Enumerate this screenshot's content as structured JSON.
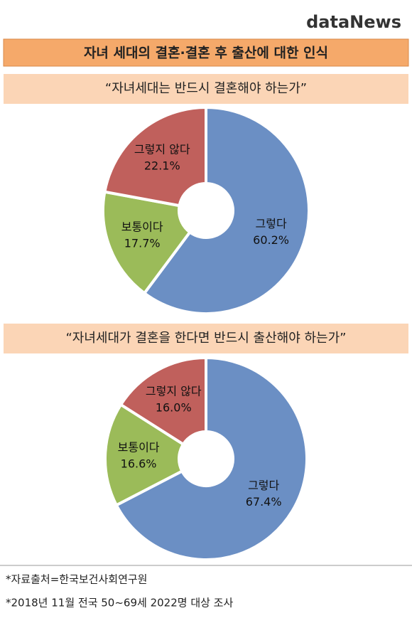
{
  "logo": "dataNews",
  "title": "자녀 세대의 결혼·결혼 후 출산에 대한 인식",
  "chart_data": [
    {
      "type": "pie",
      "title": "“자녀세대는 반드시 결혼해야 하는가”",
      "categories": [
        "그렇다",
        "보통이다",
        "그렇지 않다"
      ],
      "values": [
        60.2,
        17.7,
        22.1
      ],
      "value_labels": [
        "60.2%",
        "17.7%",
        "22.1%"
      ],
      "colors": [
        "#6b8fc4",
        "#9bbb59",
        "#c0605c"
      ]
    },
    {
      "type": "pie",
      "title": "“자녀세대가 결혼을 한다면 반드시 출산해야 하는가”",
      "categories": [
        "그렇다",
        "보통이다",
        "그렇지 않다"
      ],
      "values": [
        67.4,
        16.6,
        16.0
      ],
      "value_labels": [
        "67.4%",
        "16.6%",
        "16.0%"
      ],
      "colors": [
        "#6b8fc4",
        "#9bbb59",
        "#c0605c"
      ]
    }
  ],
  "notes": [
    "*자료출처=한국보건사회연구원",
    "*2018년 11월 전국 50~69세 2022명 대상 조사"
  ]
}
